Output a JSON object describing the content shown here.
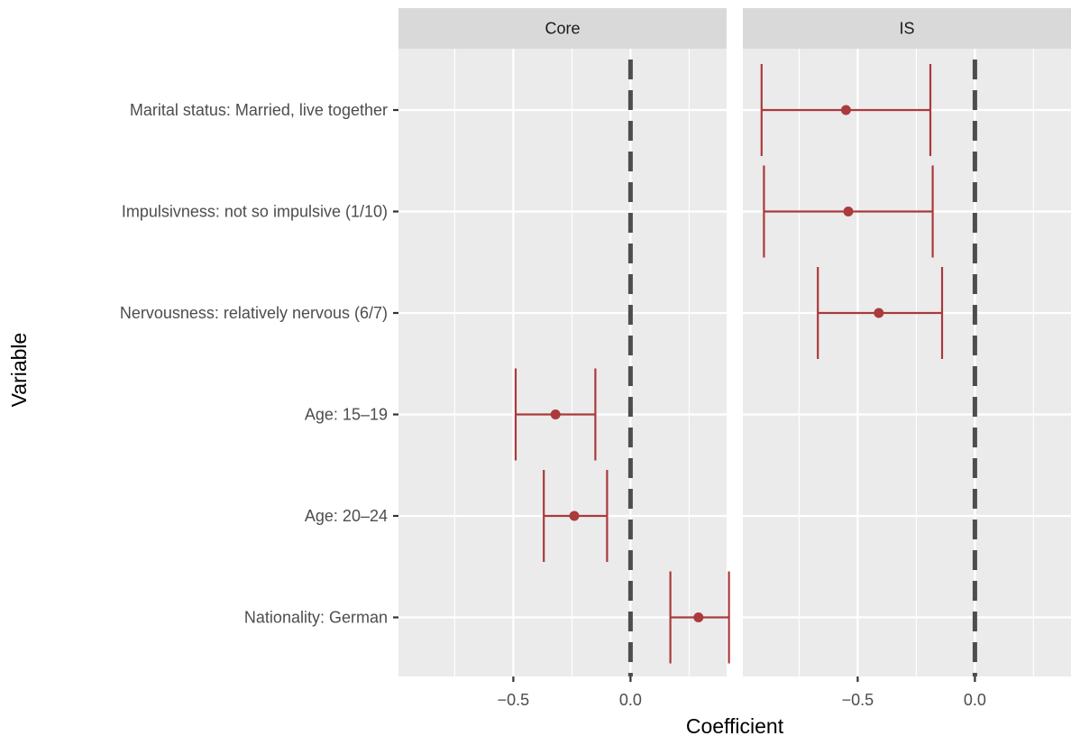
{
  "chart_data": {
    "type": "errorbar",
    "xlabel": "Coefficient",
    "ylabel": "Variable",
    "xlim": [
      -0.99,
      0.41
    ],
    "x_ticks": [
      -0.5,
      0.0
    ],
    "x_tick_labels": [
      "−0.5",
      "0.0"
    ],
    "reference_line": 0.0,
    "grid": true,
    "colors": {
      "point": "#aa3a3c",
      "panel_bg": "#ebebeb",
      "strip_bg": "#d9d9d9",
      "grid_major": "#ffffff",
      "reference_line": "#4d4d4d"
    },
    "categories": [
      "Marital status: Married, live together",
      "Impulsivness: not so impulsive (1/10)",
      "Nervousness: relatively nervous (6/7)",
      "Age: 15–19",
      "Age: 20–24",
      "Nationality: German"
    ],
    "panels": [
      {
        "label": "Core",
        "points": [
          {
            "category": "Age: 15–19",
            "estimate": -0.32,
            "lower": -0.49,
            "upper": -0.15
          },
          {
            "category": "Age: 20–24",
            "estimate": -0.24,
            "lower": -0.37,
            "upper": -0.1
          },
          {
            "category": "Nationality: German",
            "estimate": 0.29,
            "lower": 0.17,
            "upper": 0.42
          }
        ]
      },
      {
        "label": "IS",
        "points": [
          {
            "category": "Marital status: Married, live together",
            "estimate": -0.55,
            "lower": -0.91,
            "upper": -0.19
          },
          {
            "category": "Impulsivness: not so impulsive (1/10)",
            "estimate": -0.54,
            "lower": -0.9,
            "upper": -0.18
          },
          {
            "category": "Nervousness: relatively nervous (6/7)",
            "estimate": -0.41,
            "lower": -0.67,
            "upper": -0.14
          }
        ]
      }
    ]
  }
}
